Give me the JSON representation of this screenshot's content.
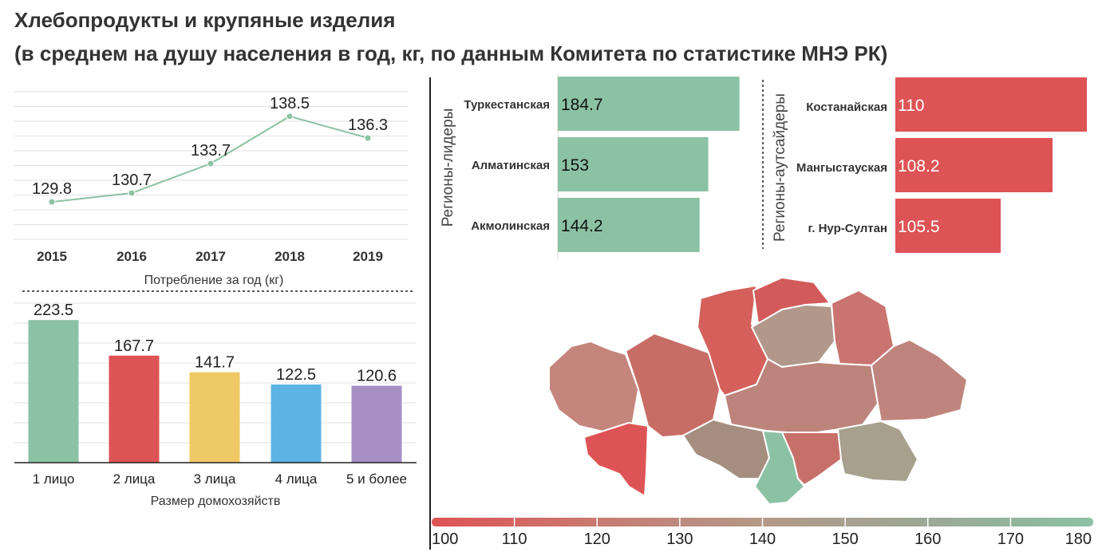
{
  "header": {
    "title_line1": "Хлебопродукты и крупяные изделия",
    "title_line2": "(в среднем на душу населения в год, кг, по данным Комитета по статистике МНЭ РК)"
  },
  "colors": {
    "green": "#8cc2a4",
    "red": "#de5355",
    "yellow": "#efc965",
    "blue": "#5db4e4",
    "purple": "#a78fc6",
    "grid": "#e2e2e2",
    "text": "#222222"
  },
  "chart_data": [
    {
      "id": "consumption",
      "type": "line",
      "x": [
        "2015",
        "2016",
        "2017",
        "2018",
        "2019"
      ],
      "values": [
        129.8,
        130.7,
        133.7,
        138.5,
        136.3
      ],
      "value_labels": [
        "129.8",
        "130.7",
        "133.7",
        "138.5",
        "136.3"
      ],
      "xlabel": "Потребление за год (кг)",
      "ylim": [
        126,
        141
      ],
      "grid": true,
      "color": "#8cc2a4"
    },
    {
      "id": "household",
      "type": "bar",
      "categories": [
        "1 лицо",
        "2 лица",
        "3 лица",
        "4 лица",
        "5 и более"
      ],
      "values": [
        223.5,
        167.7,
        141.7,
        122.5,
        120.6
      ],
      "value_labels": [
        "223.5",
        "167.7",
        "141.7",
        "122.5",
        "120.6"
      ],
      "colors": [
        "#8cc2a4",
        "#de5355",
        "#efc965",
        "#5db4e4",
        "#a78fc6"
      ],
      "xlabel": "Размер домохозяйств",
      "ylim": [
        0,
        250
      ],
      "grid": true
    },
    {
      "id": "leaders",
      "type": "bar",
      "orientation": "horizontal",
      "group_label": "Регионы-лидеры",
      "categories": [
        "Туркестанская",
        "Алматинская",
        "Акмолинская"
      ],
      "values": [
        184.7,
        153,
        144.2
      ],
      "value_labels": [
        "184.7",
        "153",
        "144.2"
      ],
      "color": "#8cc2a4",
      "xlim": [
        0,
        185
      ]
    },
    {
      "id": "outsiders",
      "type": "bar",
      "orientation": "horizontal",
      "group_label": "Регионы-аутсайдеры",
      "categories": [
        "Костанайская",
        "Мангыстауская",
        "г. Нур-Султан"
      ],
      "values": [
        110,
        108.2,
        105.5
      ],
      "value_labels": [
        "110",
        "108.2",
        "105.5"
      ],
      "color": "#de5355",
      "xlim": [
        100,
        110
      ]
    },
    {
      "id": "legend_scale",
      "type": "heatmap",
      "ticks": [
        "100",
        "110",
        "120",
        "130",
        "140",
        "150",
        "160",
        "170",
        "180"
      ],
      "gradient": [
        "#de5355",
        "#d46663",
        "#c97a70",
        "#bd8a7f",
        "#b39987",
        "#a8a08f",
        "#9ca895",
        "#92b49c",
        "#8cc2a4"
      ]
    }
  ]
}
